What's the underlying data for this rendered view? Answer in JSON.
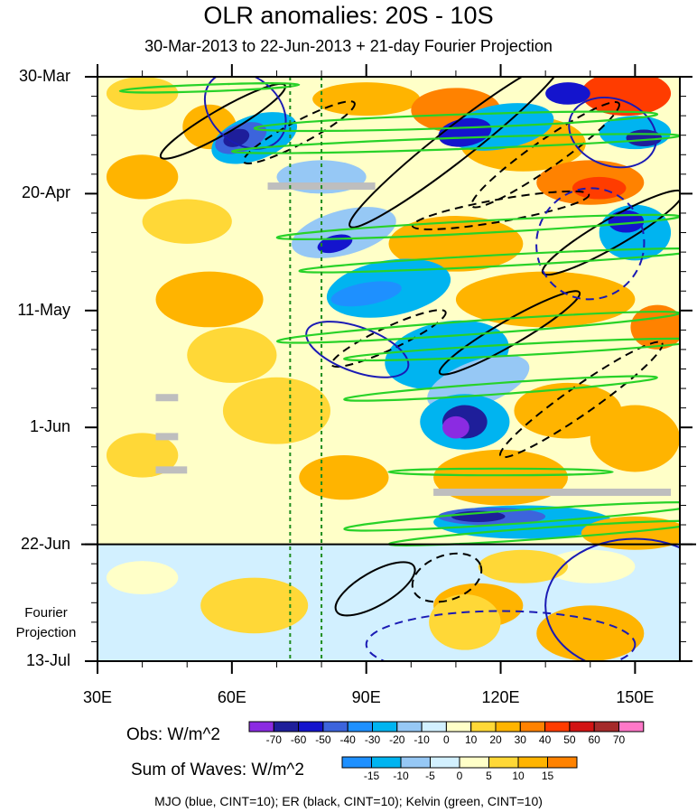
{
  "title": "OLR anomalies: 20S - 10S",
  "subtitle": "30-Mar-2013 to 22-Jun-2013 + 21-day Fourier Projection",
  "chart_data": {
    "type": "heatmap",
    "title": "OLR anomalies: 20S - 10S",
    "subtitle": "30-Mar-2013 to 22-Jun-2013 + 21-day Fourier Projection",
    "x_axis": {
      "range": [
        30,
        160
      ],
      "ticks": [
        30,
        60,
        90,
        120,
        150
      ],
      "tick_labels": [
        "30E",
        "60E",
        "90E",
        "120E",
        "150E"
      ]
    },
    "y_axis": {
      "direction": "time increasing downward",
      "range": [
        "30-Mar",
        "13-Jul"
      ],
      "tick_labels": [
        "30-Mar",
        "20-Apr",
        "11-May",
        "1-Jun",
        "22-Jun",
        "13-Jul"
      ],
      "tick_days": [
        0,
        21,
        42,
        63,
        84,
        105
      ]
    },
    "observation_end": "22-Jun",
    "projection_label": "Fourier Projection",
    "reference_longitudes": [
      73,
      80
    ],
    "obs_colorbar": {
      "label": "Obs: W/m^2",
      "levels": [
        -70,
        -60,
        -50,
        -40,
        -30,
        -20,
        -10,
        0,
        10,
        20,
        30,
        40,
        50,
        60,
        70
      ],
      "colors": [
        "#8b2be2",
        "#1e1e9a",
        "#1414cd",
        "#3c64dc",
        "#1e90ff",
        "#00b4f0",
        "#96c8f5",
        "#d2f0ff",
        "#ffffc8",
        "#ffd837",
        "#ffb400",
        "#ff8200",
        "#ff3c00",
        "#d21414",
        "#a52a2a",
        "#ff78c8"
      ]
    },
    "waves_colorbar": {
      "label": "Sum of Waves: W/m^2",
      "levels": [
        -15,
        -10,
        -5,
        0,
        5,
        10,
        15
      ],
      "colors": [
        "#1e90ff",
        "#00b4f0",
        "#96c8f5",
        "#d2f0ff",
        "#ffffc8",
        "#ffd837",
        "#ffb400",
        "#ff8200"
      ]
    },
    "contours": [
      {
        "name": "MJO",
        "color": "blue",
        "cint": 10
      },
      {
        "name": "ER",
        "color": "black",
        "cint": 10
      },
      {
        "name": "Kelvin",
        "color": "green",
        "cint": 10
      }
    ]
  },
  "footer": "MJO (blue, CINT=10); ER (black, CINT=10); Kelvin (green, CINT=10)"
}
